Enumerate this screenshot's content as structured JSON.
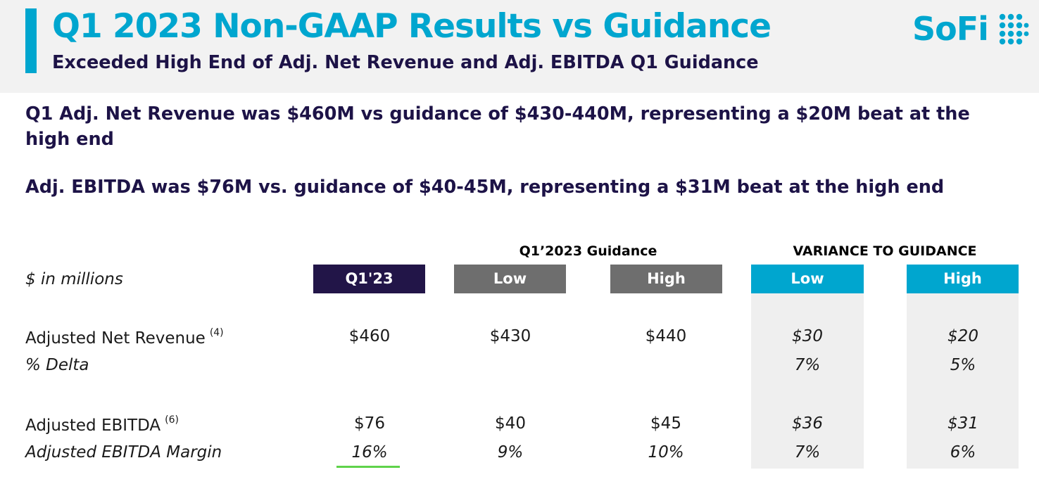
{
  "header": {
    "title": "Q1 2023 Non-GAAP Results vs Guidance",
    "subtitle": "Exceeded High End of Adj. Net Revenue and Adj. EBITDA Q1 Guidance",
    "logo_text": "SoFi",
    "accent_color": "#00a6cf",
    "navy_color": "#1d1347"
  },
  "bullets": [
    "Q1 Adj. Net Revenue was $460M vs guidance of $430-440M, representing a $20M beat at the high end",
    "Adj. EBITDA was $76M vs. guidance of $40-45M, representing a $31M beat at the high end"
  ],
  "table": {
    "unit_label": "$ in millions",
    "group_guidance": "Q1’2023 Guidance",
    "group_variance": "VARIANCE TO GUIDANCE",
    "columns": [
      "Q1'23",
      "Low",
      "High",
      "Low",
      "High"
    ],
    "rows": [
      {
        "label": "Adjusted Net Revenue",
        "footnote": "(4)",
        "italic": false,
        "values": [
          "$460",
          "$430",
          "$440",
          "$30",
          "$20"
        ]
      },
      {
        "label": "% Delta",
        "footnote": "",
        "italic": true,
        "values": [
          "",
          "",
          "",
          "7%",
          "5%"
        ]
      },
      {
        "label": "Adjusted EBITDA",
        "footnote": "(6)",
        "italic": false,
        "values": [
          "$76",
          "$40",
          "$45",
          "$36",
          "$31"
        ]
      },
      {
        "label": "Adjusted EBITDA Margin",
        "footnote": "",
        "italic": true,
        "values": [
          "16%",
          "9%",
          "10%",
          "7%",
          "6%"
        ]
      }
    ]
  }
}
